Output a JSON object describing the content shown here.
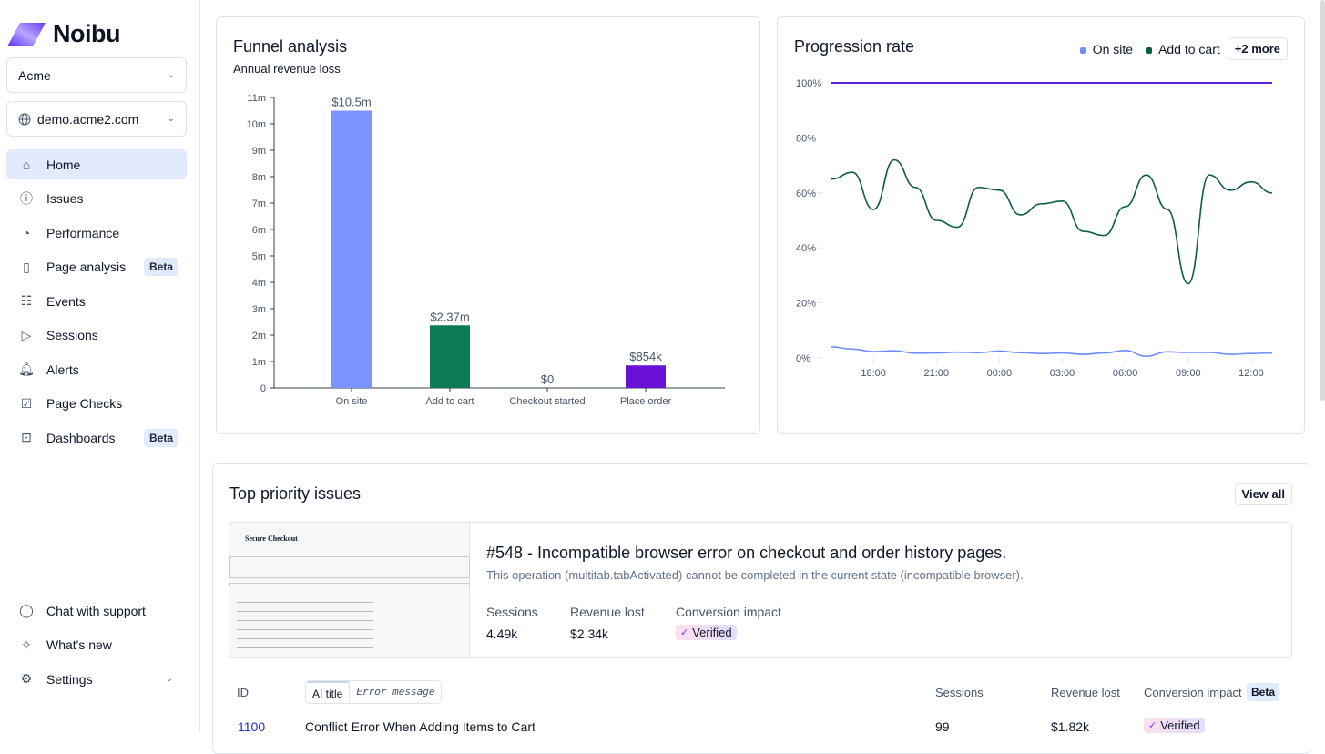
{
  "brand": {
    "name": "Noibu"
  },
  "sidebar": {
    "org": "Acme",
    "domain": "demo.acme2.com",
    "items": [
      {
        "label": "Home",
        "icon": "home-icon",
        "active": true
      },
      {
        "label": "Issues",
        "icon": "alert-circle-icon"
      },
      {
        "label": "Performance",
        "icon": "gauge-icon"
      },
      {
        "label": "Page analysis",
        "icon": "book-icon",
        "badge": "Beta"
      },
      {
        "label": "Events",
        "icon": "calendar-list-icon"
      },
      {
        "label": "Sessions",
        "icon": "play-circle-icon"
      },
      {
        "label": "Alerts",
        "icon": "bell-icon"
      },
      {
        "label": "Page Checks",
        "icon": "browser-check-icon"
      },
      {
        "label": "Dashboards",
        "icon": "chart-box-icon",
        "badge": "Beta"
      }
    ],
    "bottom": [
      {
        "label": "Chat with support",
        "icon": "chat-icon"
      },
      {
        "label": "What's new",
        "icon": "sparkle-icon"
      },
      {
        "label": "Settings",
        "icon": "gear-icon"
      }
    ]
  },
  "chart_data": [
    {
      "type": "bar",
      "title": "Funnel analysis",
      "subtitle": "Annual revenue loss",
      "categories": [
        "On site",
        "Add to cart",
        "Checkout started",
        "Place order"
      ],
      "values": [
        10.5,
        2.37,
        0,
        0.854
      ],
      "data_labels": [
        "$10.5m",
        "$2.37m",
        "$0",
        "$854k"
      ],
      "colors": [
        "#7b93fc",
        "#0b7a55",
        "#5a2ee0",
        "#6a11d8"
      ],
      "ylim": [
        0,
        11
      ],
      "yticks": [
        "0",
        "1m",
        "2m",
        "3m",
        "4m",
        "5m",
        "6m",
        "7m",
        "8m",
        "9m",
        "10m",
        "11m"
      ],
      "grid": false
    },
    {
      "type": "line",
      "title": "Progression rate",
      "x": [
        "16:00",
        "17:00",
        "18:00",
        "19:00",
        "20:00",
        "21:00",
        "22:00",
        "23:00",
        "00:00",
        "01:00",
        "02:00",
        "03:00",
        "04:00",
        "05:00",
        "06:00",
        "07:00",
        "08:00",
        "09:00",
        "10:00",
        "11:00",
        "12:00",
        "13:00"
      ],
      "xticks": [
        "18:00",
        "21:00",
        "00:00",
        "03:00",
        "06:00",
        "09:00",
        "12:00"
      ],
      "yticks": [
        "0%",
        "20%",
        "40%",
        "60%",
        "80%",
        "100%"
      ],
      "ylim": [
        0,
        100
      ],
      "series": [
        {
          "name": "On site",
          "color": "#6f8cfb",
          "values": [
            4,
            3.2,
            2.3,
            2.6,
            1.7,
            1.8,
            2.1,
            1.9,
            2.5,
            1.9,
            1.6,
            1.8,
            1.3,
            1.8,
            2.7,
            0.6,
            2.2,
            2,
            2,
            1.3,
            1.6,
            1.8
          ]
        },
        {
          "name": "Add to cart",
          "color": "#0b5e3e",
          "values": [
            65,
            67.5,
            54,
            72,
            62,
            50,
            47.5,
            62,
            61,
            52,
            56,
            57,
            46,
            44.5,
            55,
            66.5,
            54,
            27,
            66.5,
            61,
            64,
            60
          ]
        },
        {
          "color": "#5b1fe0",
          "values": [
            100,
            100,
            100,
            100,
            100,
            100,
            100,
            100,
            100,
            100,
            100,
            100,
            100,
            100,
            100,
            100,
            100,
            100,
            100,
            100,
            100,
            100
          ]
        }
      ],
      "legend_more": "+2 more",
      "legend": "top-right"
    }
  ],
  "issues": {
    "title": "Top priority issues",
    "view_all": "View all",
    "featured": {
      "title": "#548 - Incompatible browser error on checkout and order history pages.",
      "message": "This operation (multitab.tabActivated) cannot be completed in the current state (incompatible browser).",
      "sessions_label": "Sessions",
      "sessions": "4.49k",
      "revenue_label": "Revenue lost",
      "revenue": "$2.34k",
      "impact_label": "Conversion impact",
      "impact": "Verified",
      "thumb_title": "Secure Checkout"
    },
    "table": {
      "col_id": "ID",
      "toggle_ai": "AI title",
      "toggle_err": "Error message",
      "col_sessions": "Sessions",
      "col_revenue": "Revenue lost",
      "col_impact": "Conversion impact",
      "impact_badge": "Beta",
      "rows": [
        {
          "id": "1100",
          "title": "Conflict Error When Adding Items to Cart",
          "sessions": "99",
          "revenue": "$1.82k",
          "impact": "Verified"
        }
      ]
    }
  }
}
